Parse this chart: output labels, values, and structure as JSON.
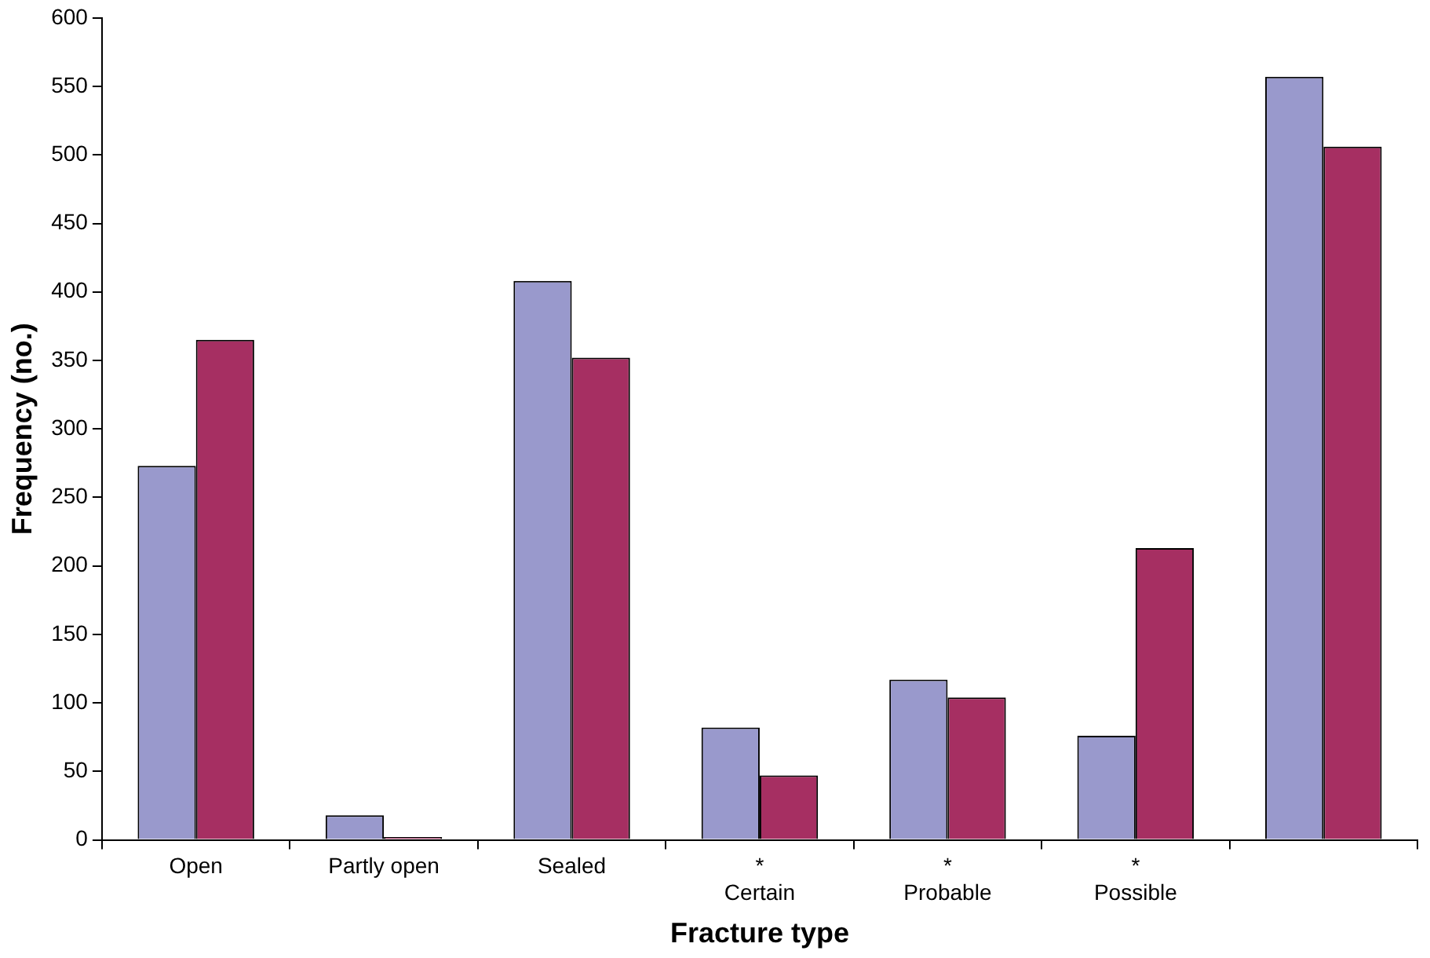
{
  "chart_data": {
    "type": "bar",
    "xlabel": "Fracture type",
    "ylabel": "Frequency (no.)",
    "categories": [
      "Open",
      "Partly open",
      "Sealed",
      "*\nCertain",
      "*\nProbable",
      "*\nPossible",
      null
    ],
    "series": [
      {
        "color": "#9999cc",
        "values": [
          273,
          18,
          408,
          82,
          117,
          76,
          557
        ]
      },
      {
        "color": "#a62f62",
        "values": [
          365,
          2,
          352,
          47,
          104,
          213,
          506
        ]
      }
    ],
    "ylim": [
      0,
      600
    ],
    "yticks": [
      0,
      50,
      100,
      150,
      200,
      250,
      300,
      350,
      400,
      450,
      500,
      550,
      600
    ],
    "grid": false,
    "legend": false
  }
}
